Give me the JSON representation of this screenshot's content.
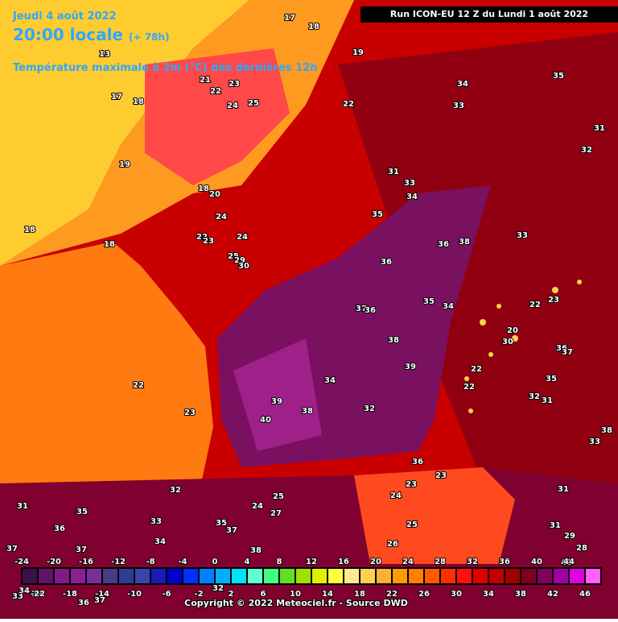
{
  "header": {
    "date": "Jeudi 4 août 2022",
    "time": "20:00 locale",
    "lead": "(+ 78h)",
    "title": "Température maximale à 2m (°C) des dernières 12h",
    "run": "Run ICON-EU 12 Z du Lundi 1 août 2022"
  },
  "map_labels": [
    17,
    18,
    13,
    19,
    21,
    23,
    22,
    24,
    25,
    17,
    18,
    22,
    34,
    35,
    33,
    31,
    32,
    19,
    18,
    20,
    18,
    31,
    33,
    34,
    24,
    35,
    36,
    38,
    33,
    22,
    23,
    18,
    24,
    25,
    29,
    30,
    36,
    37,
    36,
    35,
    34,
    22,
    23,
    20,
    38,
    36,
    37,
    39,
    30,
    22,
    34,
    35,
    22,
    22,
    23,
    39,
    38,
    32,
    32,
    31,
    40,
    38,
    33,
    36,
    23,
    23,
    32,
    25,
    24,
    27,
    31,
    35,
    24,
    31,
    36,
    33,
    35,
    37,
    25,
    31,
    29,
    37,
    37,
    34,
    38,
    26,
    28,
    40,
    33,
    34,
    22,
    36,
    37,
    32
  ],
  "scale": {
    "ticks_top": [
      -24,
      -20,
      -16,
      -12,
      -8,
      -4,
      0,
      4,
      8,
      12,
      16,
      20,
      24,
      28,
      32,
      36,
      40,
      44
    ],
    "ticks_bottom": [
      -22,
      -18,
      -14,
      -10,
      -6,
      -2,
      2,
      6,
      10,
      14,
      18,
      22,
      26,
      30,
      34,
      38,
      42,
      46
    ],
    "colors": [
      "#3c0f4d",
      "#5e1467",
      "#7f1c88",
      "#8c1e94",
      "#7a2e99",
      "#4a3a8a",
      "#2f3f8f",
      "#3b44a6",
      "#1a1ab5",
      "#0000d0",
      "#0030ff",
      "#0080ff",
      "#00b0ff",
      "#00e0ff",
      "#60ffd0",
      "#40ff80",
      "#60e020",
      "#a0e000",
      "#e0f000",
      "#ffff40",
      "#ffe890",
      "#ffd050",
      "#ffb030",
      "#ff9a00",
      "#ff8000",
      "#ff5a00",
      "#ff3000",
      "#ff1010",
      "#e00000",
      "#c00000",
      "#a00000",
      "#800020",
      "#800060",
      "#a000a0",
      "#e000e0",
      "#ff60ff"
    ]
  },
  "copyright": "Copyright © 2022 Meteociel.fr - Source DWD"
}
